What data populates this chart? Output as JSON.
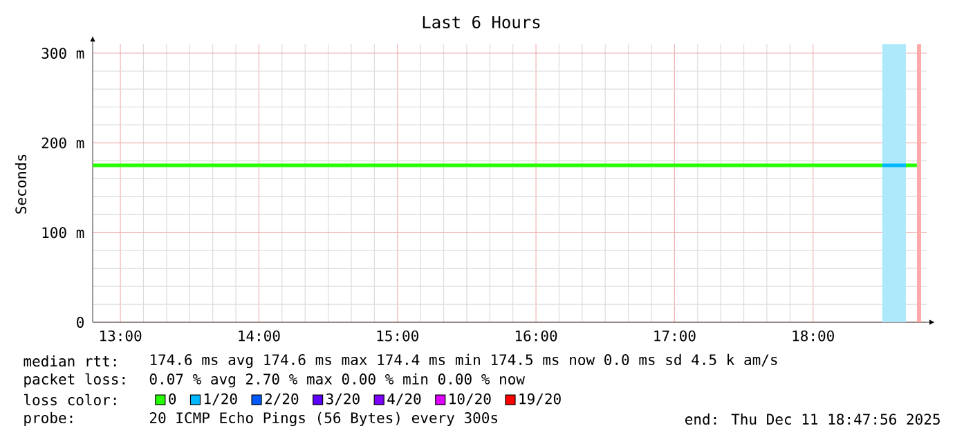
{
  "chart_data": {
    "type": "line",
    "title": "Last 6 Hours",
    "ylabel": "Seconds",
    "xlim": [
      12.8,
      18.82
    ],
    "ylim": [
      0,
      310
    ],
    "xticks": [
      {
        "value": 13,
        "label": "13:00"
      },
      {
        "value": 14,
        "label": "14:00"
      },
      {
        "value": 15,
        "label": "15:00"
      },
      {
        "value": 16,
        "label": "16:00"
      },
      {
        "value": 17,
        "label": "17:00"
      },
      {
        "value": 18,
        "label": "18:00"
      }
    ],
    "yticks": [
      0,
      {
        "value": 100,
        "label": "100 m"
      },
      {
        "value": 200,
        "label": "200 m"
      },
      {
        "value": 300,
        "label": "300 m"
      }
    ],
    "grid": true,
    "legend": "bottom",
    "legend_title": "loss color:",
    "marker": "none",
    "line_style": "solid",
    "series": [
      {
        "name": "0",
        "color": "#26ff00",
        "x": [
          12.8,
          18.5,
          18.58,
          18.67,
          18.75
        ],
        "values": [
          175,
          175,
          null,
          175,
          175
        ]
      },
      {
        "name": "1/20",
        "color": "#00b8ff",
        "x": [
          18.5,
          18.67
        ],
        "values": [
          175,
          175
        ]
      },
      {
        "name": "2/20",
        "color": "#0059ff"
      },
      {
        "name": "3/20",
        "color": "#5e00ff"
      },
      {
        "name": "4/20",
        "color": "#7e00ff"
      },
      {
        "name": "10/20",
        "color": "#dd00ff"
      },
      {
        "name": "19/20",
        "color": "#ff0000"
      }
    ],
    "bands": [
      {
        "axis": "x",
        "from": 18.5,
        "to": 18.67,
        "color": "#aee8fb"
      },
      {
        "axis": "x",
        "from": 18.75,
        "to": 18.78,
        "color": "#ffaaaa"
      }
    ],
    "annotations": [
      "median rtt:",
      "174.6 ms avg  174.6 ms max  174.4 ms min  174.5 ms now  0.0 ms sd  4.5 k am/s",
      "packet loss:",
      "0.07 % avg  2.70 % max  0.00 % min  0.00 % now",
      "probe:",
      "20 ICMP Echo Pings (56 Bytes) every 300s",
      "end: Thu Dec 11 18:47:56 2025"
    ]
  }
}
